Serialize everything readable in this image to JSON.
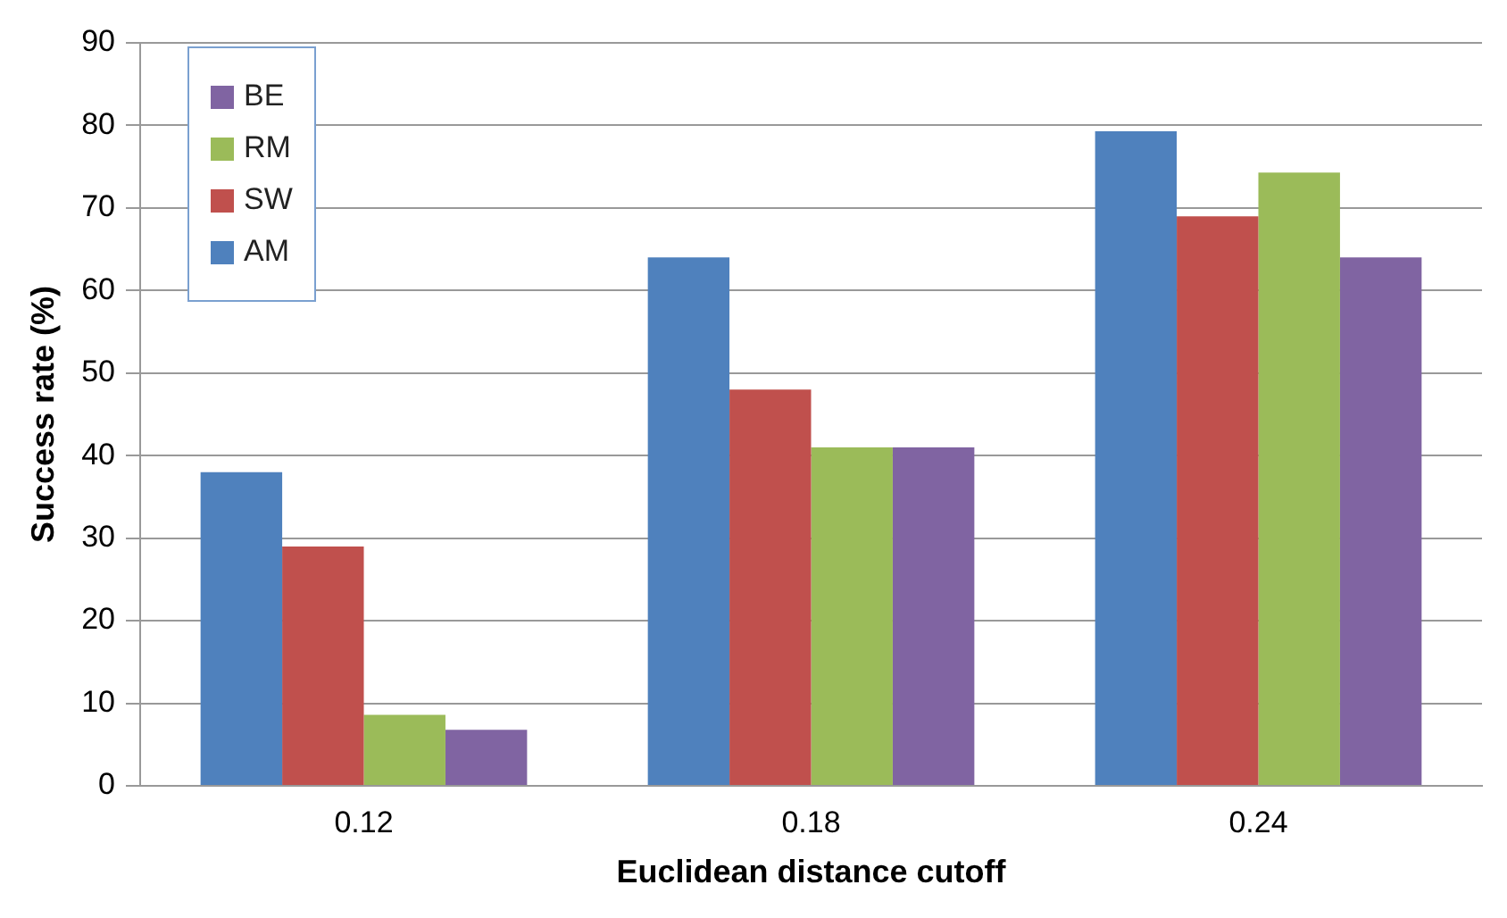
{
  "chart_data": {
    "type": "bar",
    "xlabel": "Euclidean distance cutoff",
    "ylabel": "Success rate (%)",
    "categories": [
      "0.12",
      "0.18",
      "0.24"
    ],
    "series": [
      {
        "name": "AM",
        "color": "#4f81bd",
        "values": [
          38,
          64,
          79.3
        ]
      },
      {
        "name": "SW",
        "color": "#c0504d",
        "values": [
          29,
          48,
          69
        ]
      },
      {
        "name": "RM",
        "color": "#9bbb59",
        "values": [
          8.6,
          41,
          74.3
        ]
      },
      {
        "name": "BE",
        "color": "#8064a2",
        "values": [
          6.8,
          41,
          64
        ]
      }
    ],
    "ylim": [
      0,
      90
    ],
    "yticks": [
      0,
      10,
      20,
      30,
      40,
      50,
      60,
      70,
      80,
      90
    ],
    "grid": "y",
    "legend": "top left"
  }
}
